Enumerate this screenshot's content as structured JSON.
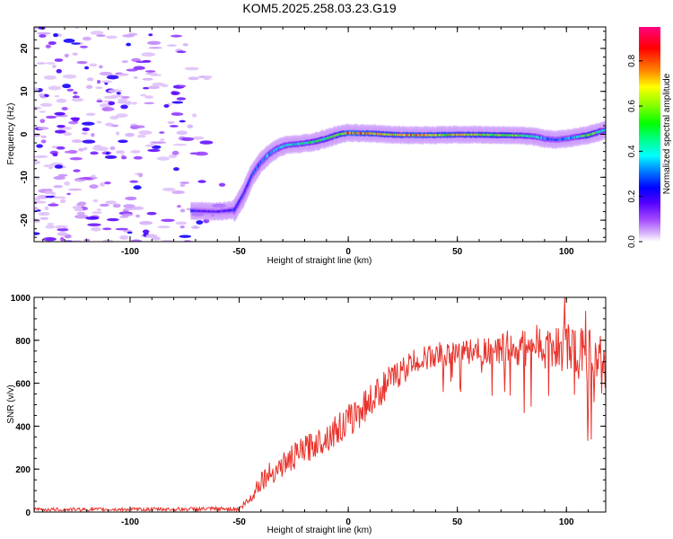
{
  "chart_data": [
    {
      "type": "heatmap",
      "title": "KOM5.2025.258.03.23.G19",
      "xlabel": "Height of straight line (km)",
      "ylabel": "Frequency (Hz)",
      "xlim": [
        -144,
        118
      ],
      "ylim": [
        -25,
        25
      ],
      "xticks": [
        -100,
        -50,
        0,
        50,
        100
      ],
      "yticks": [
        -20,
        -10,
        0,
        10,
        20
      ],
      "ridge": {
        "x": [
          -72,
          -60,
          -52,
          -48,
          -44,
          -40,
          -36,
          -32,
          -28,
          -22,
          -16,
          -10,
          -4,
          0,
          10,
          20,
          30,
          40,
          50,
          60,
          70,
          80,
          85,
          90,
          95,
          100,
          105,
          110,
          115,
          118
        ],
        "freq": [
          -17.8,
          -18.0,
          -17.6,
          -14.0,
          -9.5,
          -6.5,
          -4.5,
          -3.2,
          -2.5,
          -2.2,
          -1.8,
          -1.0,
          0.0,
          0.3,
          0.2,
          -0.1,
          -0.2,
          -0.2,
          -0.1,
          -0.1,
          -0.2,
          -0.3,
          -0.5,
          -1.0,
          -1.3,
          -1.0,
          -0.6,
          -0.2,
          0.6,
          1.0
        ],
        "amplitude": [
          0.25,
          0.2,
          0.28,
          0.25,
          0.3,
          0.32,
          0.38,
          0.42,
          0.45,
          0.45,
          0.5,
          0.55,
          0.62,
          0.85,
          0.75,
          0.7,
          0.8,
          0.75,
          0.72,
          0.7,
          0.68,
          0.55,
          0.45,
          0.35,
          0.3,
          0.35,
          0.42,
          0.7,
          0.5,
          0.45
        ]
      },
      "noise_region_x": [
        -144,
        -60
      ],
      "colorbar": {
        "label": "Normalized spectral amplitude",
        "ticks": [
          0.0,
          0.2,
          0.4,
          0.6,
          0.8
        ],
        "range": [
          0,
          0.95
        ]
      }
    },
    {
      "type": "line",
      "xlabel": "Height of straight line (km)",
      "ylabel": "SNR (v/v)",
      "xlim": [
        -144,
        118
      ],
      "ylim": [
        0,
        1000
      ],
      "xticks": [
        -100,
        -50,
        0,
        50,
        100
      ],
      "yticks": [
        0,
        200,
        400,
        600,
        800,
        1000
      ],
      "series": [
        {
          "name": "SNR",
          "color": "#e8332b",
          "envelope_x": [
            -144,
            -100,
            -50,
            -45,
            -40,
            -30,
            -20,
            -10,
            0,
            10,
            20,
            30,
            40,
            50,
            60,
            70,
            80,
            90,
            100,
            110,
            118
          ],
          "envelope_mean": [
            12,
            12,
            15,
            60,
            150,
            220,
            290,
            350,
            420,
            520,
            620,
            700,
            730,
            740,
            750,
            760,
            760,
            770,
            760,
            720,
            740
          ],
          "envelope_noise": [
            8,
            8,
            10,
            30,
            50,
            60,
            65,
            70,
            80,
            80,
            70,
            60,
            60,
            60,
            60,
            80,
            100,
            110,
            120,
            130,
            80
          ],
          "peak_value": 1000
        }
      ]
    }
  ]
}
